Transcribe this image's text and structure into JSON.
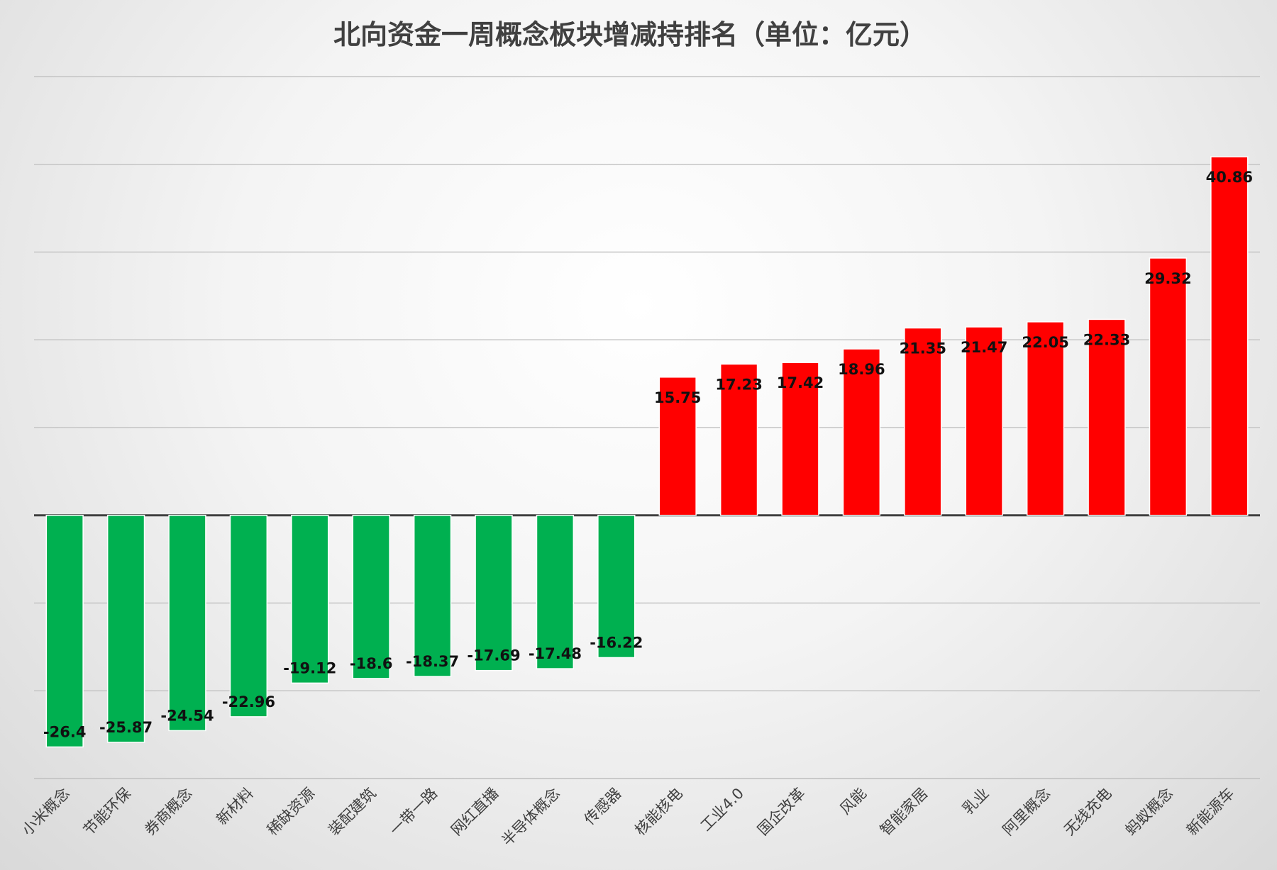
{
  "chart_data": {
    "type": "bar",
    "title": "北向资金一周概念板块增减持排名（单位：亿元）",
    "xlabel": "",
    "ylabel": "",
    "ylim": [
      -30,
      50
    ],
    "grid": true,
    "legend": "none",
    "categories": [
      "小米概念",
      "节能环保",
      "券商概念",
      "新材料",
      "稀缺资源",
      "装配建筑",
      "一带一路",
      "网红直播",
      "半导体概念",
      "传感器",
      "核能核电",
      "工业4.0",
      "国企改革",
      "风能",
      "智能家居",
      "乳业",
      "阿里概念",
      "无线充电",
      "蚂蚁概念",
      "新能源车"
    ],
    "values": [
      -26.4,
      -25.87,
      -24.54,
      -22.96,
      -19.12,
      -18.6,
      -18.37,
      -17.69,
      -17.48,
      -16.22,
      15.75,
      17.23,
      17.42,
      18.96,
      21.35,
      21.47,
      22.05,
      22.33,
      29.32,
      40.86
    ],
    "data_labels": [
      "-26.4",
      "-25.87",
      "-24.54",
      "-22.96",
      "-19.12",
      "-18.6",
      "-18.37",
      "-17.69",
      "-17.48",
      "-16.22",
      "15.75",
      "17.23",
      "17.42",
      "18.96",
      "21.35",
      "21.47",
      "22.05",
      "22.33",
      "29.32",
      "40.86"
    ],
    "colors": {
      "positive": "#ff0000",
      "negative": "#00b050",
      "positive_edge": "#ffffff",
      "negative_edge": "#ffffff"
    }
  }
}
